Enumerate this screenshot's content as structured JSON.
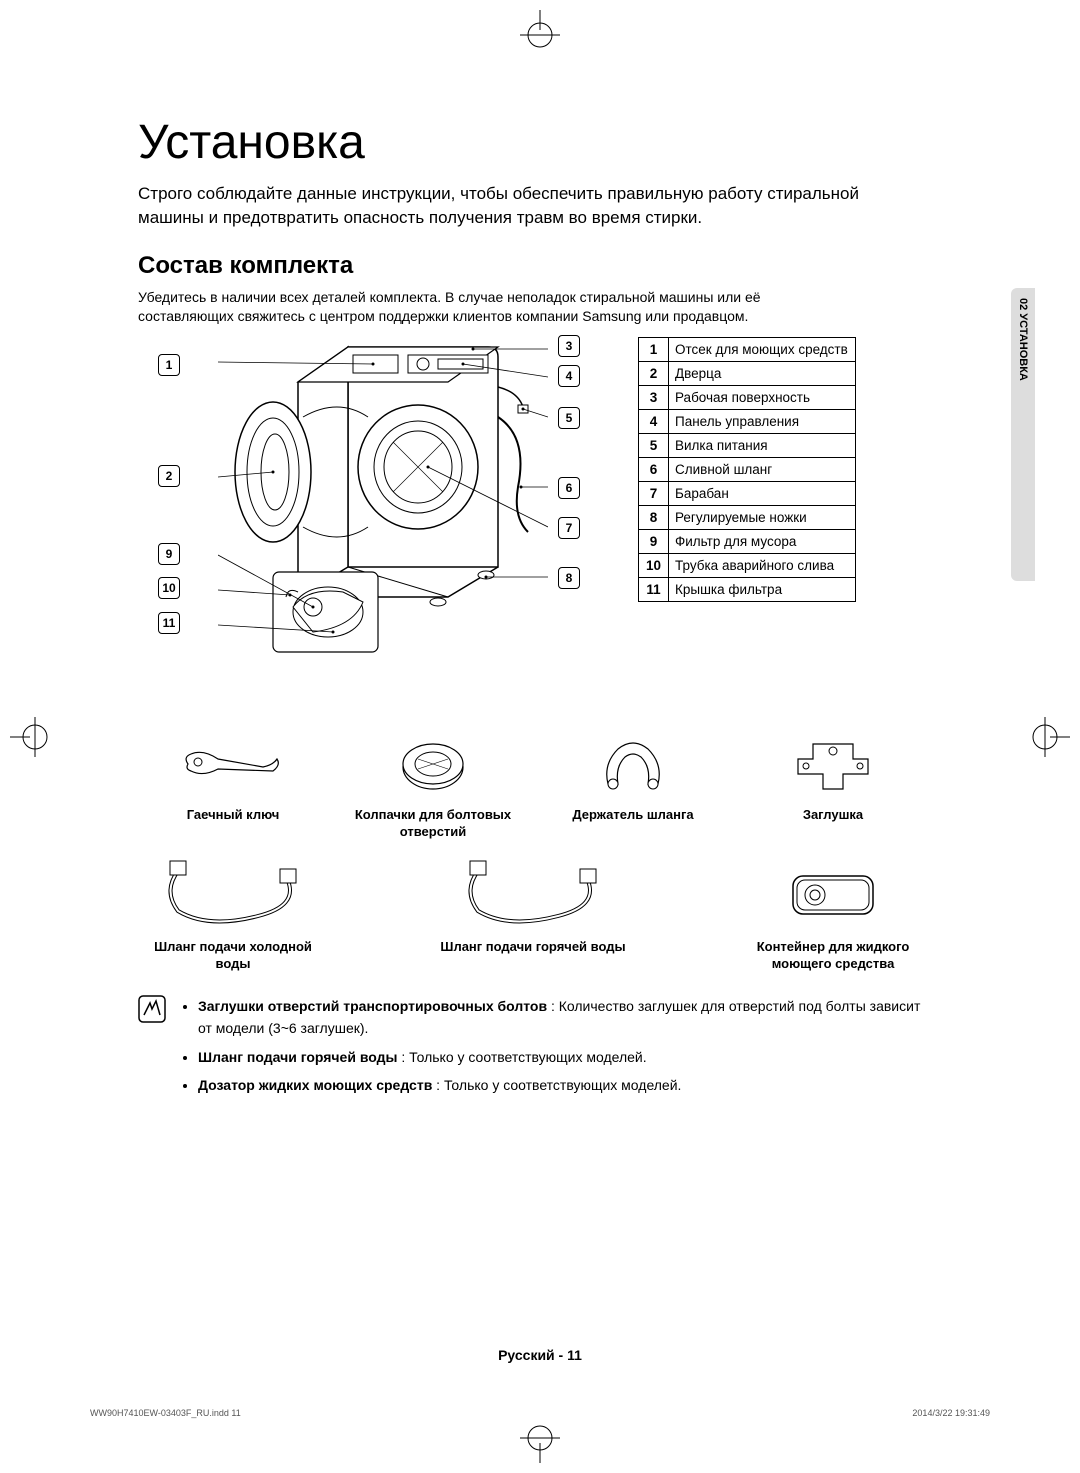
{
  "title": "Установка",
  "intro": "Строго соблюдайте данные инструкции, чтобы обеспечить правильную работу стиральной машины и предотвратить опасность получения травм во время стирки.",
  "section_heading": "Состав комплекта",
  "section_intro": "Убедитесь в наличии всех деталей комплекта. В случае неполадок стиральной машины или её составляющих свяжитесь с центром поддержки клиентов компании Samsung или продавцом.",
  "side_tab": "02 УСТАНОВКА",
  "callouts": {
    "c1": "1",
    "c2": "2",
    "c3": "3",
    "c4": "4",
    "c5": "5",
    "c6": "6",
    "c7": "7",
    "c8": "8",
    "c9": "9",
    "c10": "10",
    "c11": "11"
  },
  "parts": [
    {
      "num": "1",
      "label": "Отсек для моющих средств"
    },
    {
      "num": "2",
      "label": "Дверца"
    },
    {
      "num": "3",
      "label": "Рабочая поверхность"
    },
    {
      "num": "4",
      "label": "Панель управления"
    },
    {
      "num": "5",
      "label": "Вилка питания"
    },
    {
      "num": "6",
      "label": "Сливной шланг"
    },
    {
      "num": "7",
      "label": "Барабан"
    },
    {
      "num": "8",
      "label": "Регулируемые ножки"
    },
    {
      "num": "9",
      "label": "Фильтр для мусора"
    },
    {
      "num": "10",
      "label": "Трубка аварийного слива"
    },
    {
      "num": "11",
      "label": "Крышка фильтра"
    }
  ],
  "accessories": {
    "a1": "Гаечный ключ",
    "a2": "Колпачки для болтовых отверстий",
    "a3": "Держатель шланга",
    "a4": "Заглушка",
    "a5": "Шланг подачи холодной воды",
    "a6": "Шланг подачи горячей воды",
    "a7": "Контейнер для жидкого моющего средства"
  },
  "notes": {
    "n1b": "Заглушки отверстий транспортировочных болтов",
    "n1": " : Количество заглушек для отверстий под болты зависит от модели (3~6 заглушек).",
    "n2b": "Шланг подачи горячей воды",
    "n2": " : Только у соответствующих моделей.",
    "n3b": "Дозатор жидких моющих средств",
    "n3": " : Только у соответствующих моделей."
  },
  "footer": "Русский - 11",
  "print_left": "WW90H7410EW-03403F_RU.indd   11",
  "print_right": "2014/3/22   19:31:49"
}
